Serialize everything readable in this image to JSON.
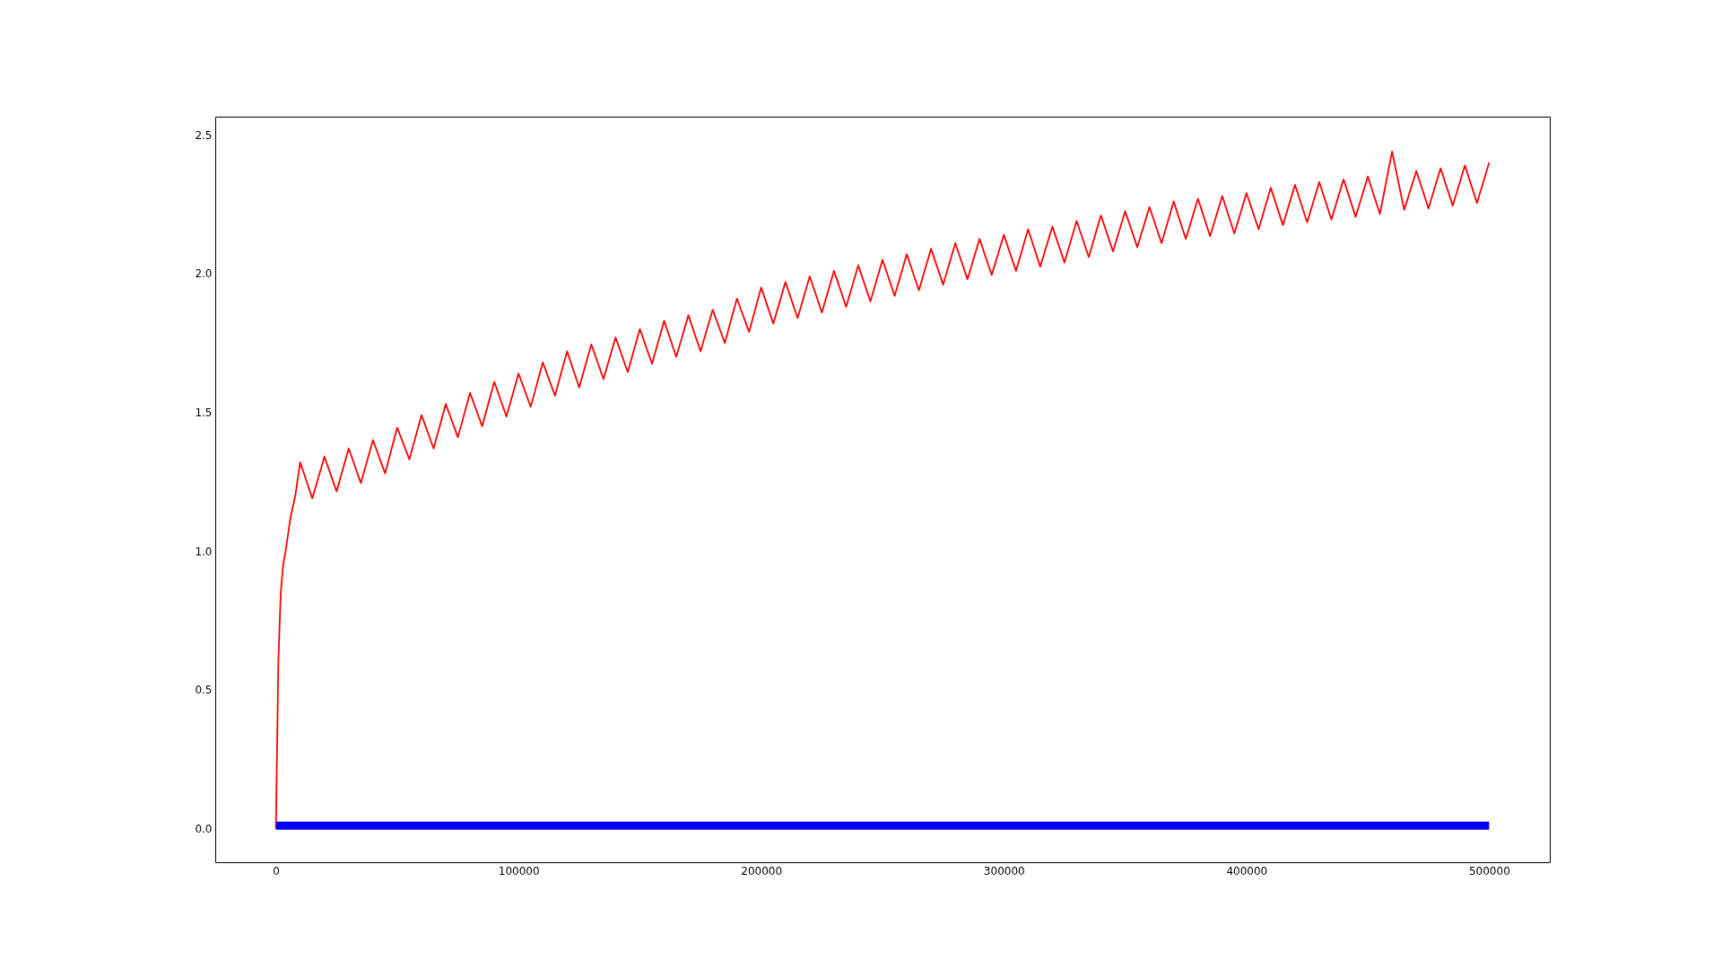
{
  "chart_data": {
    "type": "line",
    "xlim": [
      -25000,
      525000
    ],
    "xticks": [
      0,
      100000,
      200000,
      300000,
      400000,
      500000
    ],
    "ylim": [
      -0.122,
      2.566
    ],
    "yticks": [
      {
        "value": 0,
        "label": "0.0"
      },
      {
        "value": 0.5,
        "label": "0.5"
      },
      {
        "value": 1,
        "label": "1.0"
      },
      {
        "value": 1.5,
        "label": "1.5"
      },
      {
        "value": 2,
        "label": "2.0"
      },
      {
        "value": 2.5,
        "label": "2.5"
      }
    ],
    "grid": false,
    "marker": "none",
    "line_style": "solid",
    "series": [
      {
        "color": "#ff0000",
        "x": [
          0,
          500,
          1000,
          2000,
          3000,
          4000,
          6000,
          8000,
          10000,
          15000,
          20000,
          25000,
          30000,
          35000,
          40000,
          45000,
          50000,
          55000,
          60000,
          65000,
          70000,
          75000,
          80000,
          85000,
          90000,
          95000,
          100000,
          105000,
          110000,
          115000,
          120000,
          125000,
          130000,
          135000,
          140000,
          145000,
          150000,
          155000,
          160000,
          165000,
          170000,
          175000,
          180000,
          185000,
          190000,
          195000,
          200000,
          205000,
          210000,
          215000,
          220000,
          225000,
          230000,
          235000,
          240000,
          245000,
          250000,
          255000,
          260000,
          265000,
          270000,
          275000,
          280000,
          285000,
          290000,
          295000,
          300000,
          305000,
          310000,
          315000,
          320000,
          325000,
          330000,
          335000,
          340000,
          345000,
          350000,
          355000,
          360000,
          365000,
          370000,
          375000,
          380000,
          385000,
          390000,
          395000,
          400000,
          405000,
          410000,
          415000,
          420000,
          425000,
          430000,
          435000,
          440000,
          445000,
          450000,
          455000,
          460000,
          465000,
          470000,
          475000,
          480000,
          485000,
          490000,
          495000,
          500000
        ],
        "values": [
          0.0,
          0.3,
          0.6,
          0.85,
          0.95,
          1.0,
          1.12,
          1.2,
          1.32,
          1.19,
          1.34,
          1.215,
          1.37,
          1.245,
          1.4,
          1.28,
          1.445,
          1.33,
          1.49,
          1.37,
          1.53,
          1.41,
          1.57,
          1.45,
          1.61,
          1.485,
          1.64,
          1.52,
          1.68,
          1.56,
          1.72,
          1.59,
          1.745,
          1.62,
          1.77,
          1.645,
          1.8,
          1.675,
          1.83,
          1.7,
          1.85,
          1.72,
          1.87,
          1.75,
          1.91,
          1.79,
          1.95,
          1.82,
          1.97,
          1.84,
          1.99,
          1.86,
          2.01,
          1.88,
          2.03,
          1.9,
          2.05,
          1.92,
          2.07,
          1.94,
          2.09,
          1.96,
          2.11,
          1.98,
          2.125,
          1.995,
          2.14,
          2.01,
          2.16,
          2.025,
          2.17,
          2.04,
          2.19,
          2.06,
          2.21,
          2.08,
          2.225,
          2.095,
          2.24,
          2.11,
          2.26,
          2.125,
          2.27,
          2.135,
          2.28,
          2.145,
          2.29,
          2.16,
          2.31,
          2.175,
          2.32,
          2.185,
          2.33,
          2.195,
          2.34,
          2.205,
          2.35,
          2.215,
          2.44,
          2.23,
          2.37,
          2.235,
          2.38,
          2.245,
          2.39,
          2.255,
          2.4
        ]
      },
      {
        "color": "#0000ff",
        "x": [
          0,
          500000
        ],
        "values": [
          0.01,
          0.01
        ]
      }
    ]
  }
}
